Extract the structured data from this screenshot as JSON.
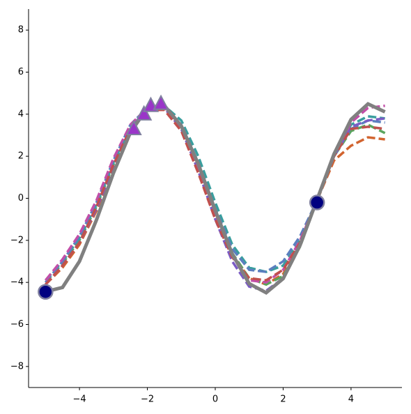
{
  "chart_data": {
    "type": "line",
    "xlim": [
      -5.5,
      5.5
    ],
    "ylim": [
      -9,
      9
    ],
    "xticks": [
      {
        "value": -4,
        "label": "−4"
      },
      {
        "value": -2,
        "label": "−2"
      },
      0,
      2,
      4
    ],
    "yticks": [
      {
        "value": -8,
        "label": "−8"
      },
      {
        "value": -6,
        "label": "−6"
      },
      {
        "value": -4,
        "label": "−4"
      },
      {
        "value": -2,
        "label": "−2"
      },
      0,
      2,
      4,
      6,
      8
    ],
    "x": [
      -5,
      -4.5,
      -4,
      -3.5,
      -3,
      -2.5,
      -2,
      -1.5,
      -1,
      -0.5,
      0,
      0.5,
      1,
      1.5,
      2,
      2.5,
      3,
      3.5,
      4,
      4.5,
      5
    ],
    "series": [
      {
        "color": "#d2642f",
        "style": "dashed",
        "values": [
          -4.1,
          -3.3,
          -2.2,
          -0.6,
          1.4,
          3.2,
          4.2,
          4.3,
          3.3,
          1.4,
          -0.8,
          -2.7,
          -3.8,
          -4.1,
          -3.6,
          -2.2,
          -0.1,
          1.8,
          2.5,
          2.9,
          2.8
        ]
      },
      {
        "color": "#5aa55e",
        "style": "dashed",
        "values": [
          -4.0,
          -3.1,
          -2.0,
          -0.4,
          1.6,
          3.3,
          4.2,
          4.3,
          3.4,
          1.6,
          -0.6,
          -2.6,
          -3.8,
          -4.1,
          -3.7,
          -2.3,
          -0.1,
          2.0,
          3.2,
          3.5,
          3.1
        ]
      },
      {
        "color": "#3a9e9e",
        "style": "dashed",
        "values": [
          -3.9,
          -3.0,
          -1.9,
          -0.3,
          1.7,
          3.4,
          4.3,
          4.4,
          3.7,
          2.0,
          -0.2,
          -2.2,
          -3.3,
          -3.5,
          -3.2,
          -2.0,
          -0.1,
          2.0,
          3.5,
          3.9,
          3.8
        ]
      },
      {
        "color": "#5b7fbf",
        "style": "dashed",
        "values": [
          -4.0,
          -3.0,
          -1.8,
          -0.2,
          1.8,
          3.5,
          4.3,
          4.3,
          3.5,
          1.7,
          -0.5,
          -2.4,
          -3.4,
          -3.5,
          -3.0,
          -1.8,
          -0.1,
          2.0,
          3.3,
          3.7,
          3.6
        ]
      },
      {
        "color": "#7b5cc4",
        "style": "dashed",
        "values": [
          -4.1,
          -3.2,
          -2.1,
          -0.5,
          1.5,
          3.3,
          4.2,
          4.3,
          3.3,
          1.3,
          -1.0,
          -3.0,
          -4.2,
          -4.4,
          -3.8,
          -2.2,
          -0.1,
          2.0,
          3.4,
          3.7,
          3.8
        ]
      },
      {
        "color": "#c24fa8",
        "style": "dashed",
        "values": [
          -3.9,
          -2.9,
          -1.7,
          -0.1,
          1.9,
          3.5,
          4.3,
          4.3,
          3.4,
          1.5,
          -0.8,
          -2.7,
          -3.9,
          -4.0,
          -3.4,
          -2.0,
          -0.1,
          2.1,
          3.6,
          4.3,
          4.4
        ]
      },
      {
        "color": "#c0504d",
        "style": "dashed",
        "values": [
          -4.1,
          -3.2,
          -2.1,
          -0.4,
          1.6,
          3.3,
          4.2,
          4.2,
          3.2,
          1.2,
          -1.0,
          -2.8,
          -3.8,
          -3.9,
          -3.4,
          -2.1,
          -0.1,
          2.0,
          3.3,
          3.4,
          3.3
        ]
      },
      {
        "color": "#808080",
        "style": "solid",
        "values": [
          -4.44,
          -4.24,
          -3.0,
          -1.03,
          1.2,
          3.13,
          4.3,
          4.41,
          3.44,
          1.63,
          -0.58,
          -2.65,
          -4.06,
          -4.49,
          -3.82,
          -2.23,
          -0.06,
          2.11,
          3.75,
          4.49,
          4.11
        ]
      }
    ],
    "markers": [
      {
        "marker": "triangle",
        "color": "#9a35c8",
        "x": [
          -2.4,
          -2.1,
          -1.9,
          -1.6
        ],
        "y": [
          3.3,
          4.0,
          4.4,
          4.5
        ]
      },
      {
        "marker": "circle",
        "color": "#000080",
        "x": [
          -5,
          3
        ],
        "y": [
          -4.45,
          -0.2
        ]
      }
    ]
  }
}
